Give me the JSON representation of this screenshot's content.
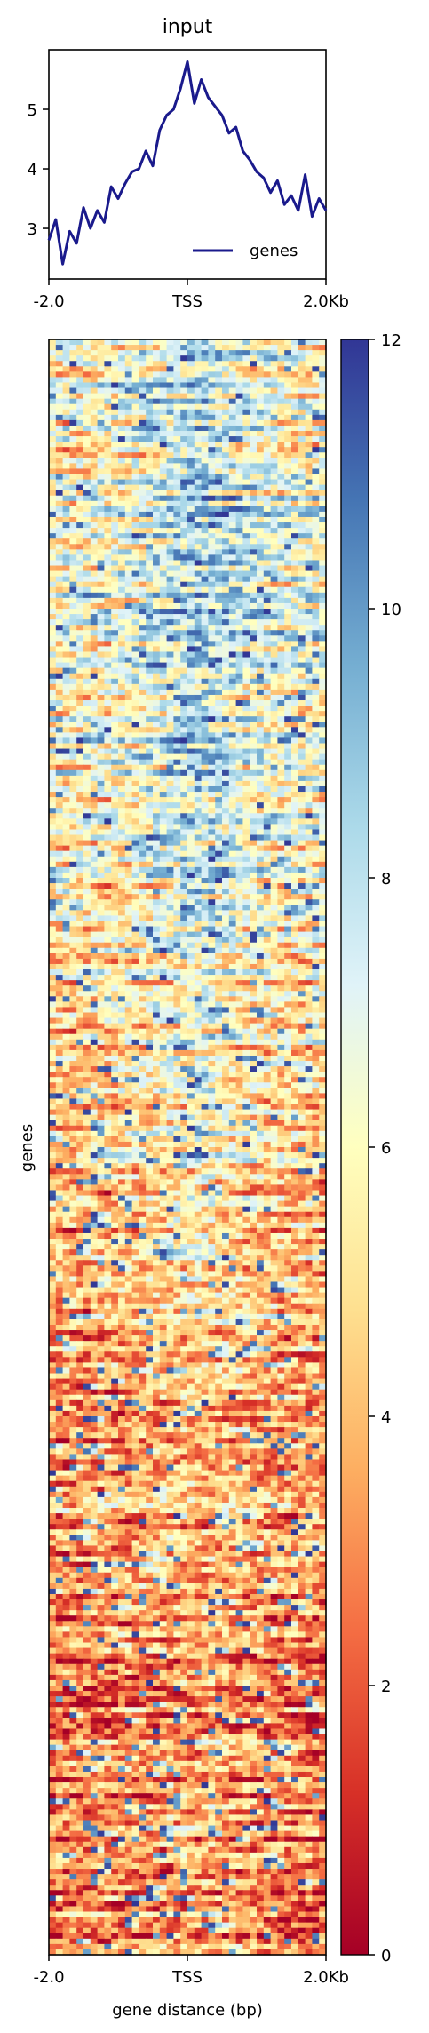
{
  "chart_data": [
    {
      "type": "line",
      "title": "input",
      "xlabel": "",
      "ylabel": "",
      "xlim": [
        -2.0,
        2.0
      ],
      "ylim": [
        2.15,
        6.0
      ],
      "x_ticks": [
        -2.0,
        0.0,
        2.0
      ],
      "x_tick_labels": [
        "-2.0",
        "TSS",
        "2.0Kb"
      ],
      "y_ticks": [
        3,
        4,
        5
      ],
      "y_tick_labels": [
        "3",
        "4",
        "5"
      ],
      "legend": {
        "placement": "bottom-right",
        "entries": [
          "genes"
        ]
      },
      "grid": false,
      "series": [
        {
          "name": "genes",
          "color": "#1a1a8c",
          "x": [
            -2.0,
            -1.9,
            -1.8,
            -1.7,
            -1.6,
            -1.5,
            -1.4,
            -1.3,
            -1.2,
            -1.1,
            -1.0,
            -0.9,
            -0.8,
            -0.7,
            -0.6,
            -0.5,
            -0.4,
            -0.3,
            -0.2,
            -0.1,
            0.0,
            0.1,
            0.2,
            0.3,
            0.4,
            0.5,
            0.6,
            0.7,
            0.8,
            0.9,
            1.0,
            1.1,
            1.2,
            1.3,
            1.4,
            1.5,
            1.6,
            1.7,
            1.8,
            1.9,
            2.0
          ],
          "y": [
            2.8,
            3.15,
            2.4,
            2.95,
            2.75,
            3.35,
            3.0,
            3.3,
            3.1,
            3.7,
            3.5,
            3.75,
            3.95,
            4.0,
            4.3,
            4.05,
            4.65,
            4.9,
            5.0,
            5.35,
            5.8,
            5.1,
            5.5,
            5.2,
            5.05,
            4.9,
            4.6,
            4.7,
            4.3,
            4.15,
            3.95,
            3.85,
            3.6,
            3.8,
            3.4,
            3.55,
            3.3,
            3.9,
            3.2,
            3.5,
            3.3
          ]
        }
      ]
    },
    {
      "type": "heatmap",
      "xlabel": "gene distance (bp)",
      "ylabel": "genes",
      "x_tick_labels": [
        "-2.0",
        "TSS",
        "2.0Kb"
      ],
      "value_range": [
        0,
        12
      ],
      "colormap": "RdYlBu",
      "colorbar_ticks": [
        0,
        2,
        4,
        6,
        8,
        10,
        12
      ],
      "colorbar_tick_labels": [
        "0",
        "2",
        "4",
        "6",
        "8",
        "10",
        "12"
      ],
      "n_rows": 300,
      "n_cols": 40,
      "row_mean_profile": [
        6.3,
        6.8,
        5.3,
        4.2,
        3.0,
        2.6
      ],
      "col_mean_profile": [
        2.8,
        2.9,
        3.0,
        3.2,
        3.5,
        4.0,
        4.6,
        5.2,
        5.7,
        5.3,
        4.7,
        4.1,
        3.6,
        3.3,
        3.1,
        3.2
      ]
    }
  ],
  "colors": {
    "line": "#1a1a8c",
    "cmap_stops": [
      "#a50026",
      "#d73027",
      "#f46d43",
      "#fdae61",
      "#fee090",
      "#ffffbf",
      "#e0f3f8",
      "#abd9e9",
      "#74add1",
      "#4575b4",
      "#313695"
    ]
  }
}
